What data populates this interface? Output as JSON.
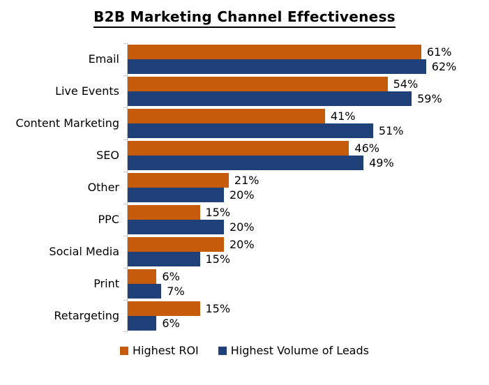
{
  "title": "B2B Marketing Channel Effectiveness",
  "legend": [
    {
      "label": "Highest ROI",
      "color": "#c75b0c"
    },
    {
      "label": "Highest Volume of Leads",
      "color": "#1f4078"
    }
  ],
  "chart_data": {
    "type": "bar",
    "orientation": "horizontal",
    "title": "B2B Marketing Channel Effectiveness",
    "categories": [
      "Email",
      "Live Events",
      "Content Marketing",
      "SEO",
      "Other",
      "PPC",
      "Social Media",
      "Print",
      "Retargeting"
    ],
    "series": [
      {
        "name": "Highest ROI",
        "color": "#c75b0c",
        "values": [
          61,
          54,
          41,
          46,
          21,
          15,
          20,
          6,
          15
        ]
      },
      {
        "name": "Highest Volume of Leads",
        "color": "#1f4078",
        "values": [
          62,
          59,
          51,
          49,
          20,
          20,
          15,
          7,
          6
        ]
      }
    ],
    "value_suffix": "%",
    "data_labels": true,
    "xlim": [
      0,
      62
    ],
    "grid": false,
    "axis_color": "#c9c9c9",
    "legend_position": "bottom"
  }
}
